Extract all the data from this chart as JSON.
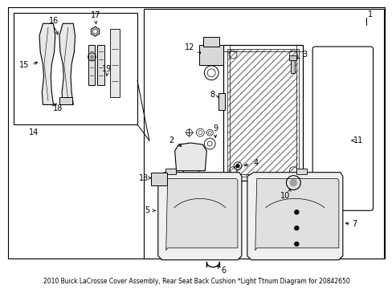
{
  "title": "2010 Buick LaCrosse Cover Assembly, Rear Seat Back Cushion *Light Ttnum Diagram for 20842650",
  "background_color": "#ffffff",
  "line_color": "#000000",
  "fig_width": 4.89,
  "fig_height": 3.6,
  "dpi": 100
}
